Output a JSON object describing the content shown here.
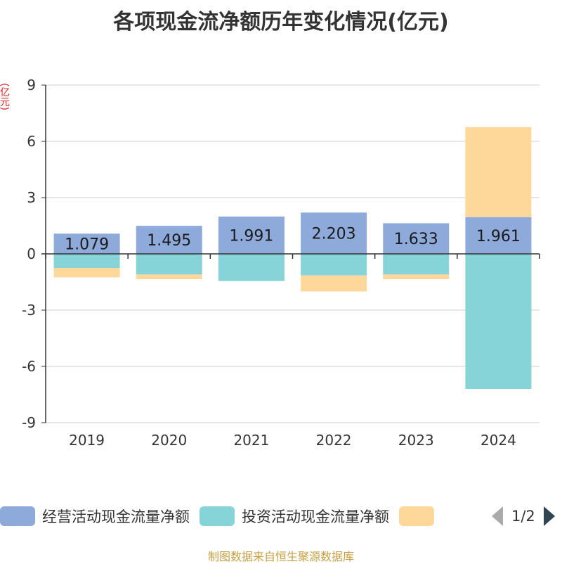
{
  "chart_data": {
    "type": "bar",
    "stacked": true,
    "title": "各项现金流净额历年变化情况(亿元)",
    "ylabel": "(亿元)",
    "categories": [
      "2019",
      "2020",
      "2021",
      "2022",
      "2023",
      "2024"
    ],
    "ylim": [
      -9,
      9
    ],
    "yticks": [
      9,
      6,
      3,
      0,
      -3,
      -6,
      -9
    ],
    "series": [
      {
        "name": "经营活动现金流量净额",
        "color": "#8eaadb",
        "values": [
          1.079,
          1.495,
          1.991,
          2.203,
          1.633,
          1.961
        ],
        "labels": [
          "1.079",
          "1.495",
          "1.991",
          "2.203",
          "1.633",
          "1.961"
        ]
      },
      {
        "name": "投资活动现金流量净额",
        "color": "#86d4d8",
        "values": [
          -0.75,
          -1.1,
          -1.45,
          -1.15,
          -1.1,
          -7.2
        ]
      },
      {
        "name": "",
        "color": "#fdd89a",
        "values": [
          -0.5,
          -0.25,
          0,
          -0.85,
          -0.25,
          4.8
        ]
      }
    ],
    "grid": true,
    "legend": "bottom"
  },
  "legend": {
    "items": [
      "经营活动现金流量净额",
      "投资活动现金流量净额",
      ""
    ],
    "page": "1/2"
  },
  "footer": "制图数据来自恒生聚源数据库"
}
